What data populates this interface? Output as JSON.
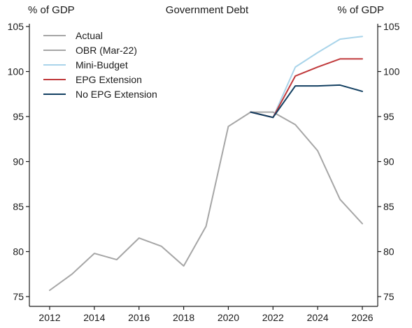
{
  "chart_data": {
    "type": "line",
    "title": "Government Debt",
    "ylabel_left": "% of GDP",
    "ylabel_right": "% of GDP",
    "xlabel": "",
    "xlim": [
      2012,
      2026
    ],
    "ylim": [
      75,
      105
    ],
    "x_ticks": [
      2012,
      2014,
      2016,
      2018,
      2020,
      2022,
      2024,
      2026
    ],
    "y_ticks": [
      75,
      80,
      85,
      90,
      95,
      100,
      105
    ],
    "grid": false,
    "legend_position": "top-left",
    "series": [
      {
        "name": "Actual",
        "color": "#a6a6a6",
        "x": [
          2012,
          2013,
          2014,
          2015,
          2016,
          2017,
          2018,
          2019,
          2020,
          2021,
          2022
        ],
        "y": [
          75.7,
          77.5,
          79.8,
          79.1,
          81.5,
          80.6,
          78.4,
          82.8,
          93.9,
          95.5,
          95.5
        ]
      },
      {
        "name": "OBR (Mar-22)",
        "color": "#a6a6a6",
        "x": [
          2022,
          2023,
          2024,
          2025,
          2026
        ],
        "y": [
          95.5,
          94.1,
          91.2,
          85.8,
          83.1
        ]
      },
      {
        "name": "Mini-Budget",
        "color": "#a9d4ea",
        "x": [
          2021,
          2022,
          2023,
          2024,
          2025,
          2026
        ],
        "y": [
          95.5,
          94.9,
          100.5,
          102.1,
          103.6,
          103.9
        ]
      },
      {
        "name": "EPG Extension",
        "color": "#c0393b",
        "x": [
          2021,
          2022,
          2023,
          2024,
          2025,
          2026
        ],
        "y": [
          95.5,
          94.9,
          99.5,
          100.5,
          101.4,
          101.4
        ]
      },
      {
        "name": "No EPG Extension",
        "color": "#123f61",
        "x": [
          2021,
          2022,
          2023,
          2024,
          2025,
          2026
        ],
        "y": [
          95.5,
          94.9,
          98.4,
          98.4,
          98.5,
          97.8
        ]
      }
    ]
  }
}
